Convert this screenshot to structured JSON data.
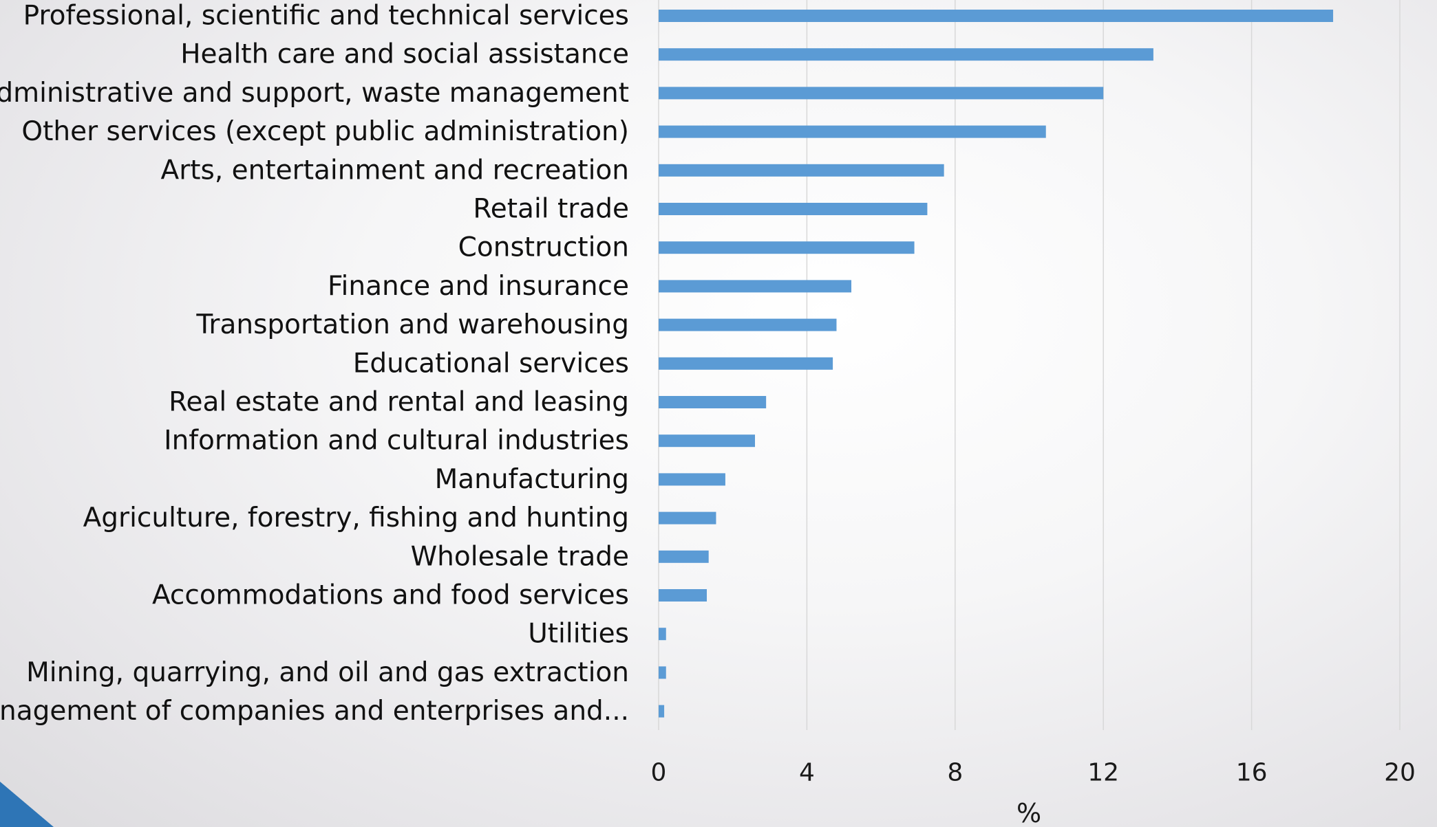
{
  "chart_data": {
    "type": "bar",
    "orientation": "horizontal",
    "title": "",
    "xlabel": "%",
    "ylabel": "",
    "xlim": [
      0,
      20
    ],
    "xticks": [
      "0",
      "4",
      "8",
      "12",
      "16",
      "20"
    ],
    "grid": true,
    "bar_color": "#5b9bd5",
    "categories": [
      "Professional, scientific and technical services",
      "Health care and social assistance",
      "Administrative and support, waste management",
      "Other services (except public administration)",
      "Arts, entertainment and recreation",
      "Retail trade",
      "Construction",
      "Finance and insurance",
      "Transportation and warehousing",
      "Educational services",
      "Real estate and rental and leasing",
      "Information and cultural industries",
      "Manufacturing",
      "Agriculture, forestry, fishing and hunting",
      "Wholesale trade",
      "Accommodations and food services",
      "Utilities",
      "Mining, quarrying, and oil and gas extraction",
      "Management of companies and enterprises  and..."
    ],
    "values": [
      18.2,
      13.35,
      12.0,
      10.45,
      7.7,
      7.25,
      6.9,
      5.2,
      4.8,
      4.7,
      2.9,
      2.6,
      1.8,
      1.55,
      1.35,
      1.3,
      0.2,
      0.2,
      0.15
    ]
  },
  "decor": {
    "corner_color": "#2e75b6"
  }
}
